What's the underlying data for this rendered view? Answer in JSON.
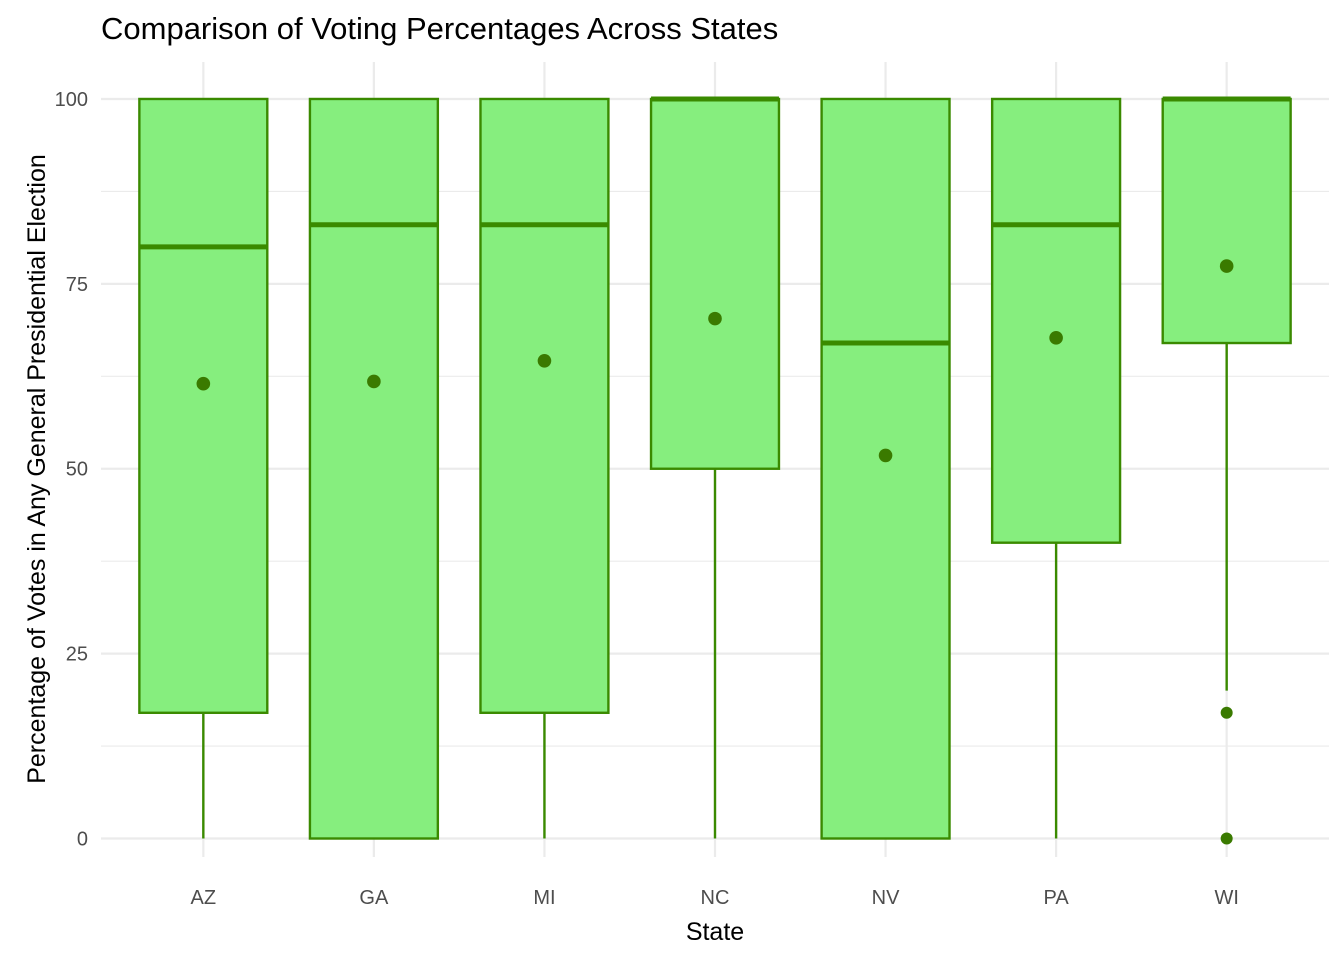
{
  "chart_data": {
    "type": "box",
    "title": "Comparison of Voting Percentages Across States",
    "xlabel": "State",
    "ylabel": "Percentage of Votes in Any General Presidential Election",
    "ylim": [
      -2.5,
      105
    ],
    "yticks": [
      0,
      25,
      50,
      75,
      100
    ],
    "grid": true,
    "colors": {
      "box_fill": "#86ee7e",
      "box_stroke": "#3a8a00",
      "mean_point": "#3a7a00"
    },
    "categories": [
      "AZ",
      "GA",
      "MI",
      "NC",
      "NV",
      "PA",
      "WI"
    ],
    "boxes": [
      {
        "category": "AZ",
        "whisker_low": 0,
        "q1": 17,
        "median": 80,
        "q3": 100,
        "whisker_high": 100,
        "mean": 61.5,
        "outliers": []
      },
      {
        "category": "GA",
        "whisker_low": 0,
        "q1": 0,
        "median": 83,
        "q3": 100,
        "whisker_high": 100,
        "mean": 61.8,
        "outliers": []
      },
      {
        "category": "MI",
        "whisker_low": 0,
        "q1": 17,
        "median": 83,
        "q3": 100,
        "whisker_high": 100,
        "mean": 64.6,
        "outliers": []
      },
      {
        "category": "NC",
        "whisker_low": 0,
        "q1": 50,
        "median": 100,
        "q3": 100,
        "whisker_high": 100,
        "mean": 70.3,
        "outliers": []
      },
      {
        "category": "NV",
        "whisker_low": 0,
        "q1": 0,
        "median": 67,
        "q3": 100,
        "whisker_high": 100,
        "mean": 51.8,
        "outliers": []
      },
      {
        "category": "PA",
        "whisker_low": 0,
        "q1": 40,
        "median": 83,
        "q3": 100,
        "whisker_high": 100,
        "mean": 67.7,
        "outliers": []
      },
      {
        "category": "WI",
        "whisker_low": 20,
        "q1": 67,
        "median": 100,
        "q3": 100,
        "whisker_high": 100,
        "mean": 77.4,
        "outliers": [
          17,
          0
        ]
      }
    ]
  }
}
